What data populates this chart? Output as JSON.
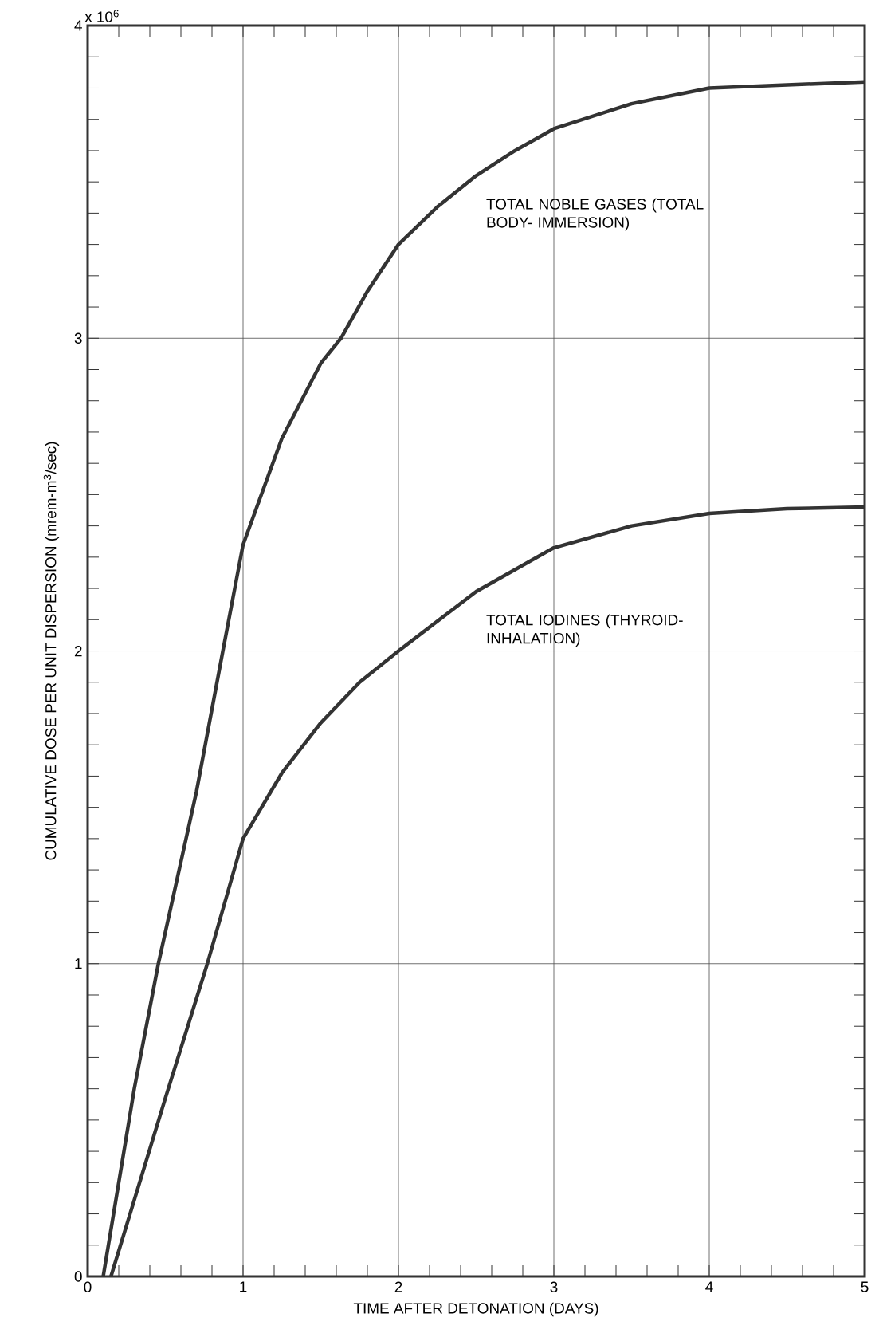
{
  "chart_data": {
    "type": "line",
    "xlabel": "TIME AFTER DETONATION (DAYS)",
    "ylabel": "CUMULATIVE DOSE PER UNIT DISPERSION (mrem-m$^{3}$/sec)",
    "annotations": [
      "x 10$^{6}$"
    ],
    "series": [
      {
        "name": "TOTAL NOBLE GASES (TOTAL BODY- IMMERSION)",
        "color": "#333333",
        "x": [
          0.1,
          0.3,
          0.455,
          0.7,
          0.87,
          1,
          1.25,
          1.5,
          1.63,
          1.8,
          2,
          2.25,
          2.5,
          2.75,
          3,
          3.5,
          4,
          4.5,
          5
        ],
        "values": [
          0,
          0.6,
          1,
          1.55,
          2,
          2.34,
          2.68,
          2.92,
          3,
          3.15,
          3.3,
          3.42,
          3.52,
          3.6,
          3.67,
          3.75,
          3.8,
          3.81,
          3.82
        ]
      },
      {
        "name": "TOTAL IODINES (THYROID-INHALATION)",
        "color": "#333333",
        "x": [
          0.15,
          0.5,
          0.77,
          1,
          1.25,
          1.5,
          1.75,
          2,
          2.5,
          3,
          3.5,
          4,
          4.5,
          5
        ],
        "values": [
          0,
          0.57,
          1,
          1.4,
          1.61,
          1.77,
          1.9,
          2,
          2.19,
          2.33,
          2.4,
          2.44,
          2.455,
          2.46
        ]
      }
    ],
    "xlim": [
      0,
      5
    ],
    "ylim": [
      0,
      4
    ],
    "xticks": [
      0,
      1,
      2,
      3,
      4,
      5
    ],
    "yticks": [
      0,
      1,
      2,
      3,
      4
    ],
    "grid": true,
    "marker": "none",
    "line_style": "solid"
  }
}
